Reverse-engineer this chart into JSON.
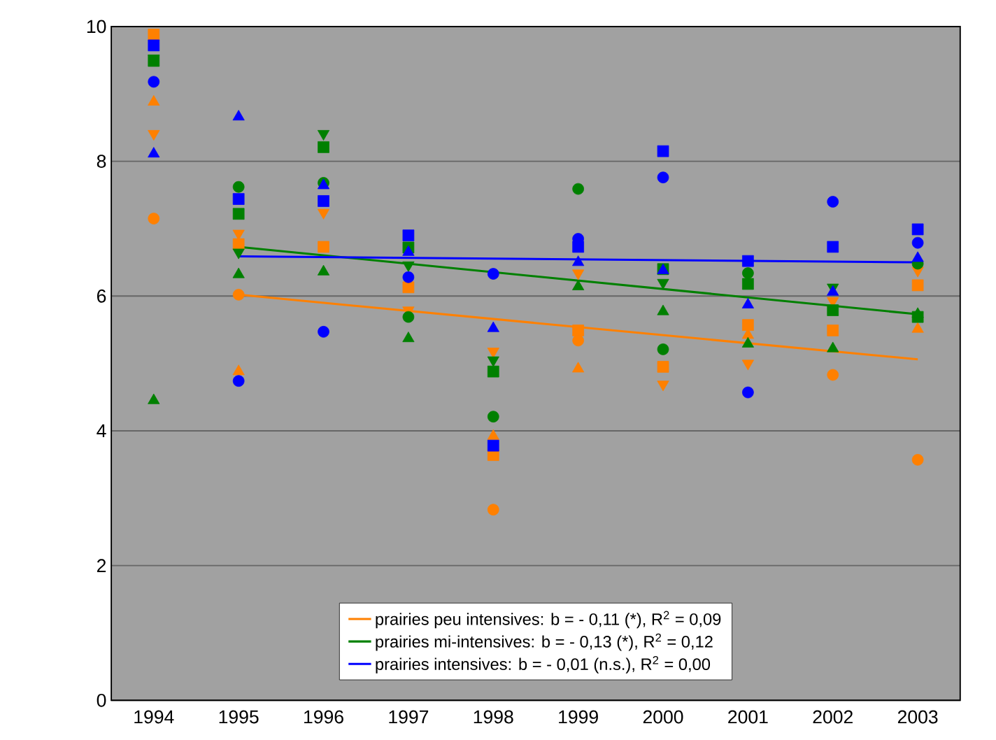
{
  "chart_data": {
    "type": "scatter",
    "x": [
      1994,
      1995,
      1996,
      1997,
      1998,
      1999,
      2000,
      2001,
      2002,
      2003
    ],
    "xlim": [
      1993.5,
      2003.5
    ],
    "xticks": [
      1994,
      1995,
      1996,
      1997,
      1998,
      1999,
      2000,
      2001,
      2002,
      2003
    ],
    "ylim": [
      0,
      10
    ],
    "yticks": [
      0,
      2,
      4,
      6,
      8,
      10
    ],
    "grid": "y",
    "legend": "bottom",
    "series": [
      {
        "color": "#ff8000",
        "marker": "circle",
        "values": [
          7.15,
          6.02,
          null,
          null,
          2.83,
          5.34,
          null,
          null,
          4.83,
          3.57
        ]
      },
      {
        "color": "#ff8000",
        "marker": "square",
        "values": [
          9.88,
          6.77,
          6.73,
          6.13,
          3.64,
          5.49,
          4.95,
          5.57,
          5.49,
          6.16
        ]
      },
      {
        "color": "#ff8000",
        "marker": "triangle",
        "values": [
          8.88,
          4.88,
          null,
          null,
          3.92,
          4.92,
          null,
          5.42,
          null,
          5.51
        ]
      },
      {
        "color": "#ff8000",
        "marker": "triangle_down",
        "values": [
          8.41,
          6.93,
          7.24,
          5.79,
          5.18,
          6.34,
          4.69,
          5.0,
          5.93,
          6.38
        ]
      },
      {
        "color": "#008000",
        "marker": "circle",
        "values": [
          null,
          7.62,
          7.68,
          5.69,
          4.21,
          7.59,
          5.21,
          6.34,
          null,
          6.48
        ]
      },
      {
        "color": "#008000",
        "marker": "square",
        "values": [
          9.49,
          7.22,
          8.21,
          6.72,
          4.88,
          null,
          6.4,
          6.18,
          5.79,
          5.69
        ]
      },
      {
        "color": "#008000",
        "marker": "triangle",
        "values": [
          4.45,
          6.32,
          6.36,
          5.37,
          null,
          6.14,
          5.77,
          5.29,
          5.22,
          5.73
        ]
      },
      {
        "color": "#008000",
        "marker": "triangle_down",
        "values": [
          9.53,
          6.65,
          8.41,
          6.46,
          5.05,
          null,
          6.2,
          null,
          6.13,
          null
        ]
      },
      {
        "color": "#0000ff",
        "marker": "circle",
        "values": [
          9.18,
          4.74,
          5.47,
          6.28,
          6.33,
          6.85,
          7.76,
          4.57,
          7.4,
          6.79
        ]
      },
      {
        "color": "#0000ff",
        "marker": "square",
        "values": [
          9.72,
          7.44,
          7.41,
          6.9,
          3.78,
          6.73,
          8.15,
          6.52,
          6.73,
          6.99
        ]
      },
      {
        "color": "#0000ff",
        "marker": "triangle",
        "values": [
          8.11,
          8.66,
          7.64,
          6.65,
          5.52,
          6.5,
          6.38,
          5.87,
          6.06,
          6.56
        ]
      },
      {
        "type": "line",
        "marker": "none",
        "name": "prairies peu intensives: b = - 0,11 (*), R$^{2}$ = 0,09",
        "color": "#ff8000",
        "values": [
          null,
          6.02,
          null,
          null,
          null,
          null,
          null,
          null,
          null,
          5.06
        ]
      },
      {
        "type": "line",
        "marker": "none",
        "name": "prairies mi-intensives: b = - 0,13 (*), R$^{2}$ = 0,12",
        "color": "#008000",
        "values": [
          null,
          6.73,
          null,
          null,
          null,
          null,
          null,
          null,
          null,
          5.73
        ]
      },
      {
        "type": "line",
        "marker": "none",
        "name": "prairies intensives: b = - 0,01 (n.s.), R$^{2}$ = 0,00",
        "color": "#0000ff",
        "values": [
          null,
          6.59,
          null,
          null,
          null,
          null,
          null,
          null,
          null,
          6.5
        ]
      }
    ]
  }
}
